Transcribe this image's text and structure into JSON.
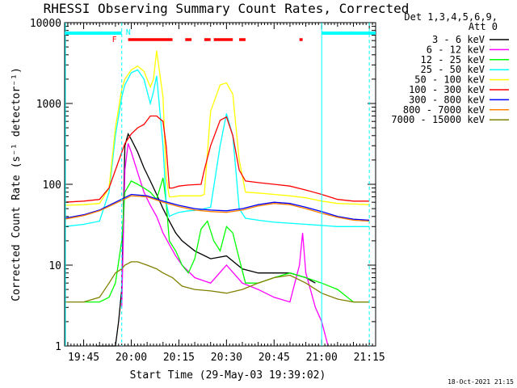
{
  "chart_data": {
    "type": "line",
    "title": "RHESSI Observing Summary Count Rates, Corrected",
    "xlabel": "Start Time (29-May-03 19:39:02)",
    "ylabel": "Corrected Count Rate (s⁻¹ detector⁻¹)",
    "yscale": "log",
    "xlim": [
      "19:39",
      "21:17"
    ],
    "ylim": [
      1,
      10000
    ],
    "x_ticks": [
      "19:45",
      "20:00",
      "20:15",
      "20:30",
      "20:45",
      "21:00",
      "21:15"
    ],
    "y_ticks": [
      "1",
      "10",
      "100",
      "1000",
      "10000"
    ],
    "legend_title": [
      "Det 1,3,4,5,6,9,",
      "Att 0"
    ],
    "legend_position": "right",
    "timestamp": "18-Oct-2021 21:15",
    "flags": [
      {
        "letter": "F",
        "color": "#ff0000"
      },
      {
        "letter": "N",
        "color": "#00ffff"
      }
    ],
    "series": [
      {
        "name": "3 - 6 keV",
        "color": "#000000",
        "x": [
          "19:49",
          "19:52",
          "19:55",
          "19:56",
          "19:57",
          "19:58",
          "19:59",
          "20:00",
          "20:02",
          "20:04",
          "20:06",
          "20:08",
          "20:10",
          "20:12",
          "20:14",
          "20:16",
          "20:20",
          "20:25",
          "20:30",
          "20:35",
          "20:40",
          "20:45",
          "20:50",
          "20:55",
          "20:58"
        ],
        "values": [
          1.0,
          1.0,
          1.0,
          2.0,
          5.0,
          300,
          420,
          360,
          250,
          160,
          110,
          75,
          50,
          35,
          25,
          20,
          15,
          12,
          13,
          9,
          8,
          8,
          8,
          7,
          6
        ]
      },
      {
        "name": "6 - 12 keV",
        "color": "#ff00ff",
        "x": [
          "19:57",
          "19:58",
          "19:59",
          "20:00",
          "20:02",
          "20:04",
          "20:06",
          "20:08",
          "20:10",
          "20:12",
          "20:14",
          "20:16",
          "20:20",
          "20:25",
          "20:30",
          "20:35",
          "20:40",
          "20:45",
          "20:50",
          "20:53",
          "20:54",
          "20:55",
          "20:58",
          "21:00",
          "21:02"
        ],
        "values": [
          3.0,
          150,
          320,
          250,
          140,
          80,
          55,
          40,
          25,
          18,
          13,
          10,
          7,
          6,
          10,
          6,
          5,
          4,
          3.5,
          10,
          25,
          8,
          3,
          2,
          1.0
        ]
      },
      {
        "name": "12 - 25 keV",
        "color": "#00ff00",
        "x": [
          "19:45",
          "19:50",
          "19:53",
          "19:55",
          "19:57",
          "19:58",
          "20:00",
          "20:02",
          "20:04",
          "20:06",
          "20:08",
          "20:10",
          "20:11",
          "20:12",
          "20:14",
          "20:16",
          "20:18",
          "20:20",
          "20:22",
          "20:24",
          "20:26",
          "20:28",
          "20:30",
          "20:32",
          "20:34",
          "20:36",
          "20:40",
          "20:45",
          "20:50",
          "20:55",
          "21:00",
          "21:05",
          "21:10",
          "21:15"
        ],
        "values": [
          3.5,
          3.5,
          4,
          6,
          20,
          80,
          110,
          100,
          90,
          80,
          65,
          120,
          60,
          20,
          15,
          10,
          8,
          12,
          28,
          35,
          20,
          15,
          30,
          25,
          12,
          6,
          6,
          7,
          8,
          7,
          6,
          5,
          3.5,
          3.5
        ]
      },
      {
        "name": "25 - 50 keV",
        "color": "#00ffff",
        "x": [
          "19:39",
          "19:45",
          "19:50",
          "19:53",
          "19:55",
          "19:57",
          "19:58",
          "20:00",
          "20:02",
          "20:04",
          "20:06",
          "20:07",
          "20:08",
          "20:10",
          "20:11",
          "20:12",
          "20:13",
          "20:15",
          "20:18",
          "20:22",
          "20:23",
          "20:25",
          "20:28",
          "20:30",
          "20:32",
          "20:34",
          "20:36",
          "20:40",
          "20:45",
          "20:50",
          "20:55",
          "21:00",
          "21:05",
          "21:10",
          "21:15"
        ],
        "values": [
          30,
          32,
          35,
          80,
          400,
          1200,
          1700,
          2400,
          2600,
          2000,
          1000,
          1400,
          2200,
          300,
          60,
          40,
          42,
          45,
          47,
          48,
          50,
          52,
          300,
          750,
          400,
          50,
          38,
          36,
          34,
          33,
          32,
          31,
          30,
          30,
          30
        ]
      },
      {
        "name": "50 - 100 keV",
        "color": "#ffff00",
        "x": [
          "19:39",
          "19:45",
          "19:50",
          "19:53",
          "19:55",
          "19:57",
          "19:58",
          "20:00",
          "20:02",
          "20:04",
          "20:06",
          "20:07",
          "20:08",
          "20:10",
          "20:11",
          "20:12",
          "20:13",
          "20:15",
          "20:18",
          "20:22",
          "20:23",
          "20:25",
          "20:28",
          "20:30",
          "20:32",
          "20:34",
          "20:36",
          "20:40",
          "20:45",
          "20:50",
          "20:55",
          "21:00",
          "21:05",
          "21:10",
          "21:15"
        ],
        "values": [
          55,
          56,
          58,
          90,
          500,
          1500,
          2000,
          2600,
          2900,
          2500,
          1600,
          2000,
          4500,
          1200,
          120,
          70,
          70,
          72,
          72,
          72,
          75,
          800,
          1700,
          1800,
          1300,
          200,
          80,
          78,
          75,
          72,
          68,
          62,
          58,
          57,
          56
        ]
      },
      {
        "name": "100 - 300 keV",
        "color": "#ff0000",
        "x": [
          "19:39",
          "19:45",
          "19:50",
          "19:53",
          "19:55",
          "19:58",
          "20:00",
          "20:02",
          "20:04",
          "20:06",
          "20:08",
          "20:10",
          "20:11",
          "20:12",
          "20:13",
          "20:15",
          "20:18",
          "20:22",
          "20:23",
          "20:25",
          "20:28",
          "20:30",
          "20:32",
          "20:34",
          "20:36",
          "20:40",
          "20:45",
          "20:50",
          "20:55",
          "21:00",
          "21:05",
          "21:10",
          "21:15"
        ],
        "values": [
          60,
          62,
          65,
          90,
          150,
          320,
          420,
          500,
          550,
          700,
          700,
          600,
          300,
          90,
          90,
          95,
          98,
          100,
          150,
          300,
          620,
          680,
          400,
          150,
          110,
          105,
          100,
          95,
          85,
          75,
          65,
          62,
          62
        ]
      },
      {
        "name": "300 - 800 keV",
        "color": "#0000ff",
        "x": [
          "19:39",
          "19:45",
          "19:50",
          "19:55",
          "20:00",
          "20:05",
          "20:10",
          "20:15",
          "20:20",
          "20:25",
          "20:30",
          "20:35",
          "20:40",
          "20:45",
          "20:50",
          "20:55",
          "21:00",
          "21:05",
          "21:10",
          "21:15"
        ],
        "values": [
          38,
          42,
          48,
          60,
          75,
          72,
          62,
          55,
          50,
          48,
          47,
          50,
          56,
          60,
          58,
          52,
          46,
          40,
          37,
          36
        ]
      },
      {
        "name": "800 - 7000 keV",
        "color": "#ff8000",
        "x": [
          "19:39",
          "19:45",
          "19:50",
          "19:55",
          "20:00",
          "20:05",
          "20:10",
          "20:15",
          "20:20",
          "20:25",
          "20:30",
          "20:35",
          "20:40",
          "20:45",
          "20:50",
          "20:55",
          "21:00",
          "21:05",
          "21:10",
          "21:15"
        ],
        "values": [
          37,
          41,
          47,
          58,
          72,
          70,
          60,
          53,
          48,
          46,
          45,
          48,
          54,
          58,
          56,
          50,
          44,
          39,
          36,
          35
        ]
      },
      {
        "name": "7000 - 15000 keV",
        "color": "#808000",
        "x": [
          "19:39",
          "19:45",
          "19:50",
          "19:53",
          "19:55",
          "19:57",
          "19:58",
          "20:00",
          "20:02",
          "20:05",
          "20:08",
          "20:10",
          "20:13",
          "20:16",
          "20:20",
          "20:25",
          "20:30",
          "20:35",
          "20:40",
          "20:45",
          "20:50",
          "20:55",
          "21:00",
          "21:05",
          "21:10",
          "21:15"
        ],
        "values": [
          3.5,
          3.5,
          4,
          6,
          8,
          9,
          10,
          11,
          11,
          10,
          9,
          8,
          7,
          5.5,
          5,
          4.8,
          4.5,
          5,
          6,
          7,
          7.5,
          6,
          4.5,
          3.8,
          3.5,
          3.5
        ]
      }
    ]
  }
}
